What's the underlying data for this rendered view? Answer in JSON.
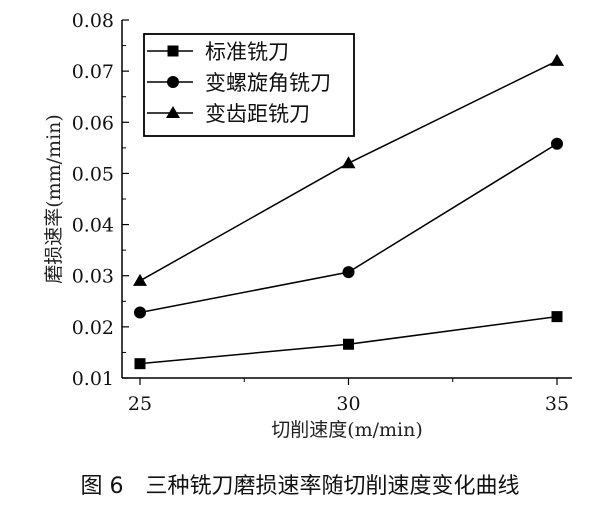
{
  "chart_data": {
    "type": "line",
    "xlabel": "切削速度(m/min)",
    "ylabel": "磨损速率(mm/min)",
    "x": [
      25,
      30,
      35
    ],
    "xticks": [
      "25",
      "30",
      "35"
    ],
    "yticks": [
      "0.01",
      "0.02",
      "0.03",
      "0.04",
      "0.05",
      "0.06",
      "0.07",
      "0.08"
    ],
    "xlim": [
      24.3,
      35.5
    ],
    "ylim": [
      0.01,
      0.08
    ],
    "grid": false,
    "legend_position": "top-left",
    "series": [
      {
        "name": "标准铣刀",
        "marker": "square",
        "values": [
          0.0128,
          0.0166,
          0.022
        ]
      },
      {
        "name": "变螺旋角铣刀",
        "marker": "circle",
        "values": [
          0.0228,
          0.0307,
          0.0558
        ]
      },
      {
        "name": "变齿距铣刀",
        "marker": "triangle",
        "values": [
          0.029,
          0.052,
          0.072
        ]
      }
    ],
    "color": "#000000"
  },
  "caption": "图 6　三种铣刀磨损速率随切削速度变化曲线"
}
